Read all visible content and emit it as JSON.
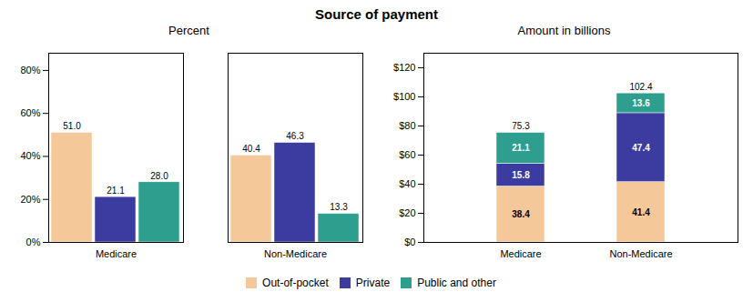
{
  "title": "Source of payment",
  "legend": "bottom",
  "chart_data": [
    {
      "type": "bar",
      "title": "Percent",
      "categories": [
        "Medicare",
        "Non-Medicare"
      ],
      "series": [
        {
          "name": "Out-of-pocket",
          "color": "#F5C89A",
          "values": [
            51.0,
            40.4
          ]
        },
        {
          "name": "Private",
          "color": "#3B3BA0",
          "values": [
            21.1,
            46.3
          ]
        },
        {
          "name": "Public and other",
          "color": "#2E9E8E",
          "values": [
            28.0,
            13.3
          ]
        }
      ],
      "ylim": [
        0,
        88
      ],
      "yticks": [
        {
          "value": 0,
          "label": "0%"
        },
        {
          "value": 20,
          "label": "20%"
        },
        {
          "value": 40,
          "label": "40%"
        },
        {
          "value": 60,
          "label": "60%"
        },
        {
          "value": 80,
          "label": "80%"
        }
      ],
      "stacked": false,
      "data_labels": true,
      "grid": false
    },
    {
      "type": "bar",
      "title": "Amount in billions",
      "categories": [
        "Medicare",
        "Non-Medicare"
      ],
      "series": [
        {
          "name": "Out-of-pocket",
          "color": "#F5C89A",
          "values": [
            38.4,
            41.4
          ]
        },
        {
          "name": "Private",
          "color": "#3B3BA0",
          "values": [
            15.8,
            47.4
          ]
        },
        {
          "name": "Public and other",
          "color": "#2E9E8E",
          "values": [
            21.1,
            13.6
          ]
        }
      ],
      "totals": [
        75.3,
        102.4
      ],
      "ylim": [
        0,
        130
      ],
      "yticks": [
        {
          "value": 0,
          "label": "$0"
        },
        {
          "value": 20,
          "label": "$20"
        },
        {
          "value": 40,
          "label": "$40"
        },
        {
          "value": 60,
          "label": "$60"
        },
        {
          "value": 80,
          "label": "$80"
        },
        {
          "value": 100,
          "label": "$100"
        },
        {
          "value": 120,
          "label": "$120"
        }
      ],
      "stacked": true,
      "data_labels": true,
      "grid": false
    }
  ]
}
